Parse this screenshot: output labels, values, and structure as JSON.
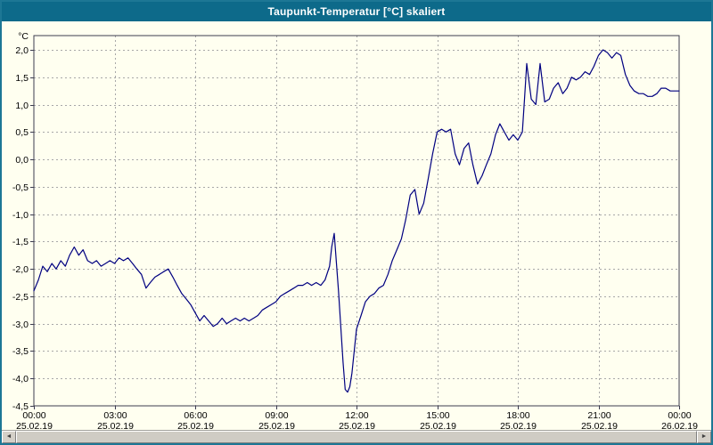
{
  "window": {
    "title_bar": {
      "title": "Taupunkt-Temperatur [°C] skaliert"
    }
  },
  "colors": {
    "title_bar_bg": "#0d6a8a",
    "title_bar_text": "#ffffff",
    "window_border": "#1d7795",
    "chart_bg": "#fffff0",
    "grid": "#a8a8a8",
    "frame": "#3c3c50",
    "line": "#000080",
    "axis_text": "#000000",
    "scrollbar_track": "#d8d5ce",
    "scrollbar_thumb": "#cfccc4"
  },
  "scrollbar": {
    "left_arrow": "◄",
    "right_arrow": "►"
  },
  "chart_data": {
    "type": "line",
    "title": "Taupunkt-Temperatur [°C] skaliert",
    "ylabel": "°C",
    "xlabel": "",
    "grid": true,
    "legend": "none",
    "ylim": [
      -4.5,
      2.0
    ],
    "xlim_hours": [
      0,
      24
    ],
    "y_ticks": [
      {
        "value": 2.0,
        "label": "2,0"
      },
      {
        "value": 1.5,
        "label": "1,5"
      },
      {
        "value": 1.0,
        "label": "1,0"
      },
      {
        "value": 0.5,
        "label": "0,5"
      },
      {
        "value": 0.0,
        "label": "0,0"
      },
      {
        "value": -0.5,
        "label": "-0,5"
      },
      {
        "value": -1.0,
        "label": "-1,0"
      },
      {
        "value": -1.5,
        "label": "-1,5"
      },
      {
        "value": -2.0,
        "label": "-2,0"
      },
      {
        "value": -2.5,
        "label": "-2,5"
      },
      {
        "value": -3.0,
        "label": "-3,0"
      },
      {
        "value": -3.5,
        "label": "-3,5"
      },
      {
        "value": -4.0,
        "label": "-4,0"
      },
      {
        "value": -4.5,
        "label": "-4,5"
      }
    ],
    "x_ticks": [
      {
        "hour": 0,
        "time": "00:00",
        "date": "25.02.19"
      },
      {
        "hour": 3,
        "time": "03:00",
        "date": "25.02.19"
      },
      {
        "hour": 6,
        "time": "06:00",
        "date": "25.02.19"
      },
      {
        "hour": 9,
        "time": "09:00",
        "date": "25.02.19"
      },
      {
        "hour": 12,
        "time": "12:00",
        "date": "25.02.19"
      },
      {
        "hour": 15,
        "time": "15:00",
        "date": "25.02.19"
      },
      {
        "hour": 18,
        "time": "18:00",
        "date": "25.02.19"
      },
      {
        "hour": 21,
        "time": "21:00",
        "date": "25.02.19"
      },
      {
        "hour": 24,
        "time": "00:00",
        "date": "26.02.19"
      }
    ],
    "series": [
      {
        "name": "Taupunkt-Temperatur",
        "color": "#000080",
        "points": [
          [
            0.0,
            -2.4
          ],
          [
            0.17,
            -2.2
          ],
          [
            0.33,
            -1.95
          ],
          [
            0.5,
            -2.05
          ],
          [
            0.67,
            -1.9
          ],
          [
            0.83,
            -2.0
          ],
          [
            1.0,
            -1.85
          ],
          [
            1.17,
            -1.95
          ],
          [
            1.33,
            -1.75
          ],
          [
            1.5,
            -1.6
          ],
          [
            1.67,
            -1.75
          ],
          [
            1.83,
            -1.65
          ],
          [
            2.0,
            -1.85
          ],
          [
            2.17,
            -1.9
          ],
          [
            2.33,
            -1.85
          ],
          [
            2.5,
            -1.95
          ],
          [
            2.67,
            -1.9
          ],
          [
            2.83,
            -1.85
          ],
          [
            3.0,
            -1.9
          ],
          [
            3.17,
            -1.8
          ],
          [
            3.33,
            -1.85
          ],
          [
            3.5,
            -1.8
          ],
          [
            3.67,
            -1.9
          ],
          [
            3.83,
            -2.0
          ],
          [
            4.0,
            -2.1
          ],
          [
            4.17,
            -2.35
          ],
          [
            4.33,
            -2.25
          ],
          [
            4.5,
            -2.15
          ],
          [
            4.67,
            -2.1
          ],
          [
            4.83,
            -2.05
          ],
          [
            5.0,
            -2.0
          ],
          [
            5.17,
            -2.15
          ],
          [
            5.33,
            -2.3
          ],
          [
            5.5,
            -2.45
          ],
          [
            5.67,
            -2.55
          ],
          [
            5.83,
            -2.65
          ],
          [
            6.0,
            -2.8
          ],
          [
            6.17,
            -2.95
          ],
          [
            6.33,
            -2.85
          ],
          [
            6.5,
            -2.95
          ],
          [
            6.67,
            -3.05
          ],
          [
            6.83,
            -3.0
          ],
          [
            7.0,
            -2.9
          ],
          [
            7.17,
            -3.0
          ],
          [
            7.33,
            -2.95
          ],
          [
            7.5,
            -2.9
          ],
          [
            7.67,
            -2.95
          ],
          [
            7.83,
            -2.9
          ],
          [
            8.0,
            -2.95
          ],
          [
            8.17,
            -2.9
          ],
          [
            8.33,
            -2.85
          ],
          [
            8.5,
            -2.75
          ],
          [
            8.67,
            -2.7
          ],
          [
            8.83,
            -2.65
          ],
          [
            9.0,
            -2.6
          ],
          [
            9.17,
            -2.5
          ],
          [
            9.33,
            -2.45
          ],
          [
            9.5,
            -2.4
          ],
          [
            9.67,
            -2.35
          ],
          [
            9.83,
            -2.3
          ],
          [
            10.0,
            -2.3
          ],
          [
            10.17,
            -2.25
          ],
          [
            10.33,
            -2.3
          ],
          [
            10.5,
            -2.25
          ],
          [
            10.67,
            -2.3
          ],
          [
            10.83,
            -2.2
          ],
          [
            11.0,
            -1.95
          ],
          [
            11.08,
            -1.6
          ],
          [
            11.17,
            -1.35
          ],
          [
            11.33,
            -2.4
          ],
          [
            11.5,
            -3.7
          ],
          [
            11.58,
            -4.2
          ],
          [
            11.67,
            -4.25
          ],
          [
            11.75,
            -4.15
          ],
          [
            11.83,
            -3.9
          ],
          [
            12.0,
            -3.1
          ],
          [
            12.17,
            -2.85
          ],
          [
            12.33,
            -2.6
          ],
          [
            12.5,
            -2.5
          ],
          [
            12.67,
            -2.45
          ],
          [
            12.83,
            -2.35
          ],
          [
            13.0,
            -2.3
          ],
          [
            13.17,
            -2.1
          ],
          [
            13.33,
            -1.85
          ],
          [
            13.5,
            -1.65
          ],
          [
            13.67,
            -1.45
          ],
          [
            13.83,
            -1.1
          ],
          [
            14.0,
            -0.65
          ],
          [
            14.17,
            -0.55
          ],
          [
            14.33,
            -1.0
          ],
          [
            14.5,
            -0.8
          ],
          [
            14.67,
            -0.35
          ],
          [
            14.83,
            0.1
          ],
          [
            15.0,
            0.5
          ],
          [
            15.17,
            0.55
          ],
          [
            15.33,
            0.5
          ],
          [
            15.5,
            0.55
          ],
          [
            15.67,
            0.1
          ],
          [
            15.83,
            -0.1
          ],
          [
            16.0,
            0.2
          ],
          [
            16.17,
            0.3
          ],
          [
            16.33,
            -0.1
          ],
          [
            16.5,
            -0.45
          ],
          [
            16.67,
            -0.3
          ],
          [
            16.83,
            -0.1
          ],
          [
            17.0,
            0.1
          ],
          [
            17.17,
            0.45
          ],
          [
            17.33,
            0.65
          ],
          [
            17.5,
            0.5
          ],
          [
            17.67,
            0.35
          ],
          [
            17.83,
            0.45
          ],
          [
            18.0,
            0.35
          ],
          [
            18.17,
            0.5
          ],
          [
            18.25,
            1.1
          ],
          [
            18.33,
            1.75
          ],
          [
            18.5,
            1.1
          ],
          [
            18.67,
            1.0
          ],
          [
            18.83,
            1.75
          ],
          [
            19.0,
            1.05
          ],
          [
            19.17,
            1.1
          ],
          [
            19.33,
            1.3
          ],
          [
            19.5,
            1.4
          ],
          [
            19.67,
            1.2
          ],
          [
            19.83,
            1.3
          ],
          [
            20.0,
            1.5
          ],
          [
            20.17,
            1.45
          ],
          [
            20.33,
            1.5
          ],
          [
            20.5,
            1.6
          ],
          [
            20.67,
            1.55
          ],
          [
            20.83,
            1.7
          ],
          [
            21.0,
            1.9
          ],
          [
            21.17,
            2.0
          ],
          [
            21.33,
            1.95
          ],
          [
            21.5,
            1.85
          ],
          [
            21.67,
            1.95
          ],
          [
            21.83,
            1.9
          ],
          [
            22.0,
            1.55
          ],
          [
            22.17,
            1.35
          ],
          [
            22.33,
            1.25
          ],
          [
            22.5,
            1.2
          ],
          [
            22.67,
            1.2
          ],
          [
            22.83,
            1.15
          ],
          [
            23.0,
            1.15
          ],
          [
            23.17,
            1.2
          ],
          [
            23.33,
            1.3
          ],
          [
            23.5,
            1.3
          ],
          [
            23.67,
            1.25
          ],
          [
            23.83,
            1.25
          ],
          [
            24.0,
            1.25
          ]
        ]
      }
    ]
  }
}
